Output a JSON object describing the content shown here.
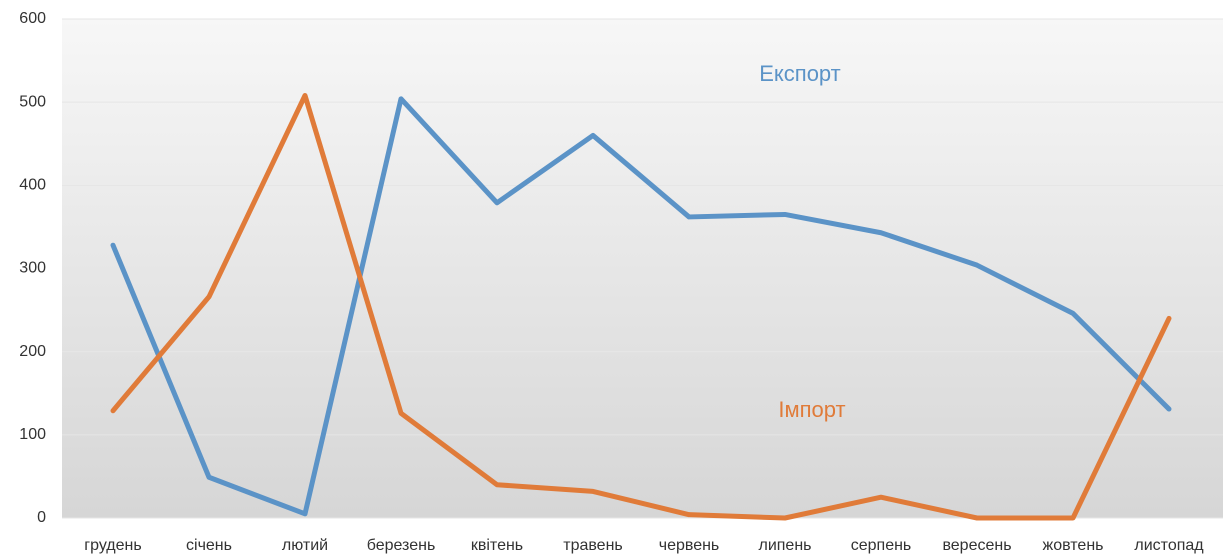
{
  "chart_data": {
    "type": "line",
    "categories": [
      "грудень",
      "січень",
      "лютий",
      "березень",
      "квітень",
      "травень",
      "червень",
      "липень",
      "серпень",
      "вересень",
      "жовтень",
      "листопад"
    ],
    "series": [
      {
        "name": "Експорт",
        "color": "#5b93c7",
        "values": [
          328,
          49,
          5,
          504,
          379,
          460,
          362,
          365,
          343,
          304,
          246,
          131
        ]
      },
      {
        "name": "Імпорт",
        "color": "#e07b39",
        "values": [
          129,
          266,
          508,
          126,
          40,
          32,
          4,
          0,
          25,
          0,
          0,
          240
        ]
      }
    ],
    "ylim": [
      0,
      600
    ],
    "yticks": [
      0,
      100,
      200,
      300,
      400,
      500,
      600
    ],
    "grid": true
  }
}
